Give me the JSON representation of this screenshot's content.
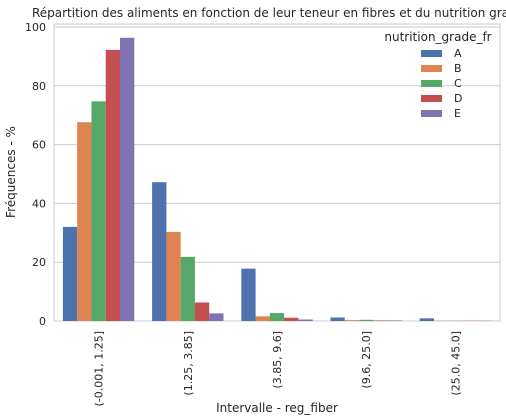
{
  "chart_data": {
    "type": "bar",
    "title": "Répartition des aliments en fonction de leur teneur en fibres et du nutrition grade",
    "xlabel": "Intervalle - reg_fiber",
    "ylabel": "Fréquences - %",
    "ylim": [
      0,
      101
    ],
    "yticks": [
      0,
      20,
      40,
      60,
      80,
      100
    ],
    "grid": true,
    "legend_title": "nutrition_grade_fr",
    "legend_position": "top-right",
    "categories": [
      "(-0.001, 1.25]",
      "(1.25, 3.85]",
      "(3.85, 9.6]",
      "(9.6, 25.0]",
      "(25.0, 45.0]"
    ],
    "series": [
      {
        "name": "A",
        "color": "#4c72b0",
        "values": [
          32.0,
          47.2,
          17.8,
          1.2,
          0.9
        ]
      },
      {
        "name": "B",
        "color": "#dd8452",
        "values": [
          67.6,
          30.3,
          1.6,
          0.3,
          0.1
        ]
      },
      {
        "name": "C",
        "color": "#55a868",
        "values": [
          74.7,
          21.8,
          2.7,
          0.4,
          0.1
        ]
      },
      {
        "name": "D",
        "color": "#c44e52",
        "values": [
          92.2,
          6.3,
          1.1,
          0.2,
          0.1
        ]
      },
      {
        "name": "E",
        "color": "#8172b3",
        "values": [
          96.3,
          2.6,
          0.5,
          0.2,
          0.1
        ]
      }
    ]
  }
}
